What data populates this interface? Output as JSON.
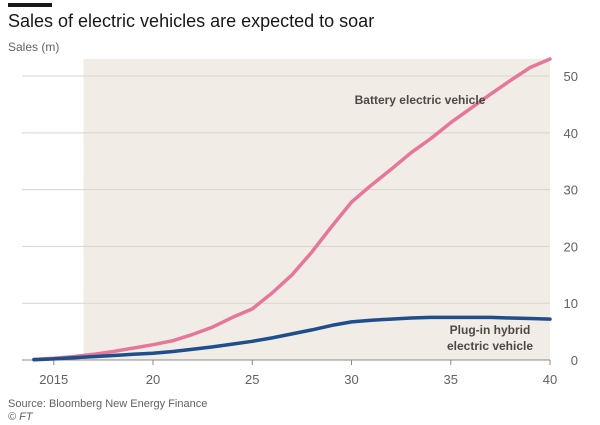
{
  "header": {
    "title": "Sales of electric vehicles are expected to soar",
    "ylabel": "Sales (m)"
  },
  "footer": {
    "source": "Source: Bloomberg New Energy Finance",
    "credit": "© FT"
  },
  "colors": {
    "shade": "#f2ece6",
    "grid": "#d9d3cd",
    "bev": "#e5779b",
    "phev": "#1f4e8c",
    "text": "#66605c"
  },
  "chart_data": {
    "type": "line",
    "title": "Sales of electric vehicles are expected to soar",
    "ylabel": "Sales (m)",
    "xlabel": "",
    "xlim": [
      2013.4,
      2040
    ],
    "ylim": [
      0,
      53
    ],
    "y_ticks": [
      0,
      10,
      20,
      30,
      40,
      50
    ],
    "x_ticks": [
      {
        "value": 2015,
        "label": "2015"
      },
      {
        "value": 2020,
        "label": "20"
      },
      {
        "value": 2025,
        "label": "25"
      },
      {
        "value": 2030,
        "label": "30"
      },
      {
        "value": 2035,
        "label": "35"
      },
      {
        "value": 2040,
        "label": "40"
      }
    ],
    "forecast_start": 2016.5,
    "grid": true,
    "x": [
      2014,
      2015,
      2016,
      2017,
      2018,
      2019,
      2020,
      2021,
      2022,
      2023,
      2024,
      2025,
      2026,
      2027,
      2028,
      2029,
      2030,
      2031,
      2032,
      2033,
      2034,
      2035,
      2036,
      2037,
      2038,
      2039,
      2040
    ],
    "series": [
      {
        "name": "Battery electric vehicle",
        "color_key": "bev",
        "values": [
          0.1,
          0.3,
          0.6,
          1.0,
          1.5,
          2.1,
          2.7,
          3.4,
          4.5,
          5.8,
          7.5,
          9.0,
          11.8,
          15.0,
          19.0,
          23.5,
          27.8,
          30.8,
          33.6,
          36.5,
          39.0,
          41.8,
          44.3,
          46.8,
          49.2,
          51.5,
          53.0
        ]
      },
      {
        "name": "Plug-in hybrid\nelectric vehicle",
        "color_key": "phev",
        "values": [
          0.05,
          0.2,
          0.4,
          0.6,
          0.8,
          1.0,
          1.2,
          1.5,
          1.9,
          2.3,
          2.8,
          3.3,
          3.9,
          4.6,
          5.3,
          6.1,
          6.7,
          7.0,
          7.2,
          7.4,
          7.5,
          7.5,
          7.5,
          7.5,
          7.4,
          7.3,
          7.2
        ]
      }
    ],
    "annotations": [
      {
        "text": "Battery electric vehicle",
        "series": 0
      },
      {
        "text": "Plug-in hybrid",
        "series": 1
      },
      {
        "text": "electric vehicle",
        "series": 1
      }
    ]
  }
}
